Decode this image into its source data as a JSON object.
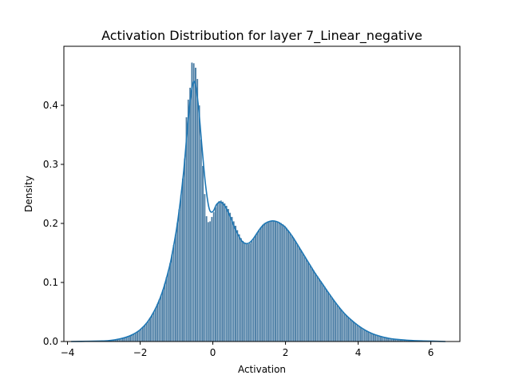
{
  "chart_data": {
    "type": "bar",
    "title": "Activation Distribution for layer 7_Linear_negative",
    "xlabel": "Activation",
    "ylabel": "Density",
    "xlim": [
      -4.1,
      6.8
    ],
    "ylim": [
      0.0,
      0.5
    ],
    "x_ticks": [
      -4,
      -2,
      0,
      2,
      4,
      6
    ],
    "x_tick_labels": [
      "−4",
      "−2",
      "0",
      "2",
      "4",
      "6"
    ],
    "y_ticks": [
      0.0,
      0.1,
      0.2,
      0.3,
      0.4
    ],
    "y_tick_labels": [
      "0.0",
      "0.1",
      "0.2",
      "0.3",
      "0.4"
    ],
    "grid": false,
    "legend": "none",
    "bar_color": "#4c7ea5",
    "bar_edge_color": "#ffffff",
    "kde_color": "#1f77b4",
    "histogram": {
      "bin_range": [
        -3.9,
        6.4
      ],
      "bin_count": 206,
      "density_points": [
        [
          -3.9,
          0.0
        ],
        [
          -3.4,
          0.0005
        ],
        [
          -3.0,
          0.001
        ],
        [
          -2.8,
          0.002
        ],
        [
          -2.6,
          0.004
        ],
        [
          -2.4,
          0.007
        ],
        [
          -2.2,
          0.012
        ],
        [
          -2.0,
          0.02
        ],
        [
          -1.8,
          0.033
        ],
        [
          -1.6,
          0.053
        ],
        [
          -1.4,
          0.082
        ],
        [
          -1.2,
          0.125
        ],
        [
          -1.1,
          0.155
        ],
        [
          -1.0,
          0.19
        ],
        [
          -0.9,
          0.235
        ],
        [
          -0.8,
          0.29
        ],
        [
          -0.75,
          0.33
        ],
        [
          -0.7,
          0.43
        ],
        [
          -0.65,
          0.39
        ],
        [
          -0.6,
          0.47
        ],
        [
          -0.55,
          0.475
        ],
        [
          -0.5,
          0.468
        ],
        [
          -0.45,
          0.46
        ],
        [
          -0.4,
          0.43
        ],
        [
          -0.35,
          0.37
        ],
        [
          -0.3,
          0.315
        ],
        [
          -0.25,
          0.28
        ],
        [
          -0.2,
          0.22
        ],
        [
          -0.15,
          0.205
        ],
        [
          -0.1,
          0.2
        ],
        [
          0.0,
          0.215
        ],
        [
          0.1,
          0.232
        ],
        [
          0.2,
          0.24
        ],
        [
          0.3,
          0.236
        ],
        [
          0.4,
          0.228
        ],
        [
          0.5,
          0.215
        ],
        [
          0.6,
          0.2
        ],
        [
          0.7,
          0.185
        ],
        [
          0.8,
          0.172
        ],
        [
          0.9,
          0.166
        ],
        [
          1.0,
          0.165
        ],
        [
          1.1,
          0.172
        ],
        [
          1.2,
          0.182
        ],
        [
          1.3,
          0.192
        ],
        [
          1.4,
          0.2
        ],
        [
          1.5,
          0.203
        ],
        [
          1.6,
          0.205
        ],
        [
          1.7,
          0.205
        ],
        [
          1.8,
          0.203
        ],
        [
          1.9,
          0.2
        ],
        [
          2.0,
          0.195
        ],
        [
          2.2,
          0.178
        ],
        [
          2.4,
          0.158
        ],
        [
          2.6,
          0.137
        ],
        [
          2.8,
          0.118
        ],
        [
          3.0,
          0.1
        ],
        [
          3.2,
          0.082
        ],
        [
          3.4,
          0.064
        ],
        [
          3.6,
          0.049
        ],
        [
          3.8,
          0.037
        ],
        [
          4.0,
          0.027
        ],
        [
          4.2,
          0.019
        ],
        [
          4.4,
          0.013
        ],
        [
          4.6,
          0.009
        ],
        [
          4.8,
          0.006
        ],
        [
          5.0,
          0.004
        ],
        [
          5.3,
          0.0025
        ],
        [
          5.6,
          0.0015
        ],
        [
          6.0,
          0.0007
        ],
        [
          6.4,
          0.0
        ]
      ]
    },
    "kde": {
      "x": [
        -3.9,
        -3.4,
        -3.0,
        -2.8,
        -2.6,
        -2.4,
        -2.2,
        -2.0,
        -1.8,
        -1.6,
        -1.4,
        -1.2,
        -1.1,
        -1.0,
        -0.9,
        -0.8,
        -0.7,
        -0.6,
        -0.5,
        -0.4,
        -0.3,
        -0.2,
        -0.1,
        0.0,
        0.1,
        0.2,
        0.3,
        0.4,
        0.5,
        0.6,
        0.7,
        0.8,
        0.9,
        1.0,
        1.1,
        1.2,
        1.3,
        1.4,
        1.5,
        1.6,
        1.7,
        1.8,
        1.9,
        2.0,
        2.2,
        2.4,
        2.6,
        2.8,
        3.0,
        3.2,
        3.4,
        3.6,
        3.8,
        4.0,
        4.2,
        4.4,
        4.6,
        4.8,
        5.0,
        5.4,
        5.8,
        6.4
      ],
      "y": [
        0.0,
        0.0005,
        0.001,
        0.002,
        0.004,
        0.007,
        0.012,
        0.02,
        0.033,
        0.053,
        0.082,
        0.125,
        0.155,
        0.19,
        0.235,
        0.29,
        0.36,
        0.42,
        0.44,
        0.4,
        0.33,
        0.265,
        0.225,
        0.22,
        0.232,
        0.236,
        0.232,
        0.222,
        0.208,
        0.193,
        0.18,
        0.17,
        0.166,
        0.167,
        0.173,
        0.182,
        0.191,
        0.198,
        0.202,
        0.204,
        0.204,
        0.202,
        0.198,
        0.193,
        0.177,
        0.157,
        0.137,
        0.117,
        0.099,
        0.081,
        0.064,
        0.049,
        0.037,
        0.027,
        0.019,
        0.013,
        0.009,
        0.006,
        0.004,
        0.002,
        0.001,
        0.0
      ]
    }
  }
}
